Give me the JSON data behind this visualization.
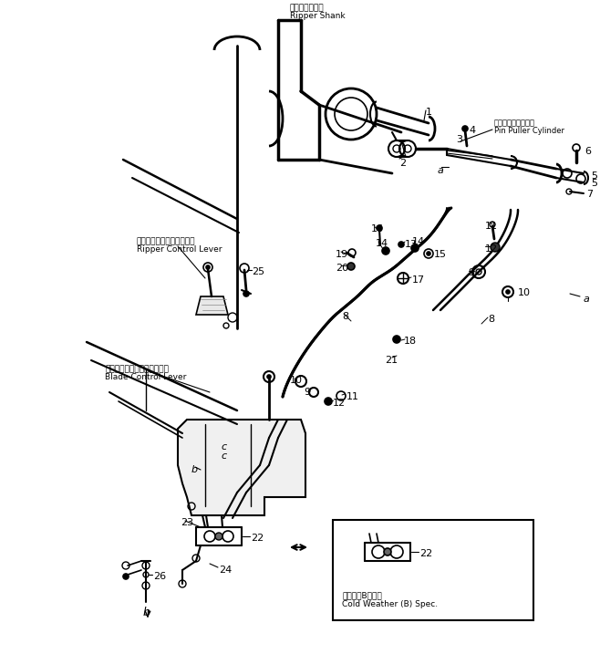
{
  "bg_color": "#ffffff",
  "fig_width": 6.58,
  "fig_height": 7.17,
  "labels": {
    "ripper_shank_jp": "リッパシャンク",
    "ripper_shank_en": "Ripper Shank",
    "pin_puller_jp": "ピンプーラシリンダ",
    "pin_puller_en": "Pin Puller Cylinder",
    "ripper_control_jp": "リッパコントロールレバー",
    "ripper_control_en": "Ripper Control Lever",
    "blade_control_jp": "ブレードコントロールレバー",
    "blade_control_en": "Blade Control Lever",
    "cold_weather_jp": "寒冷地（B）仕様",
    "cold_weather_en": "Cold Weather (B) Spec."
  },
  "lw": 1.0
}
